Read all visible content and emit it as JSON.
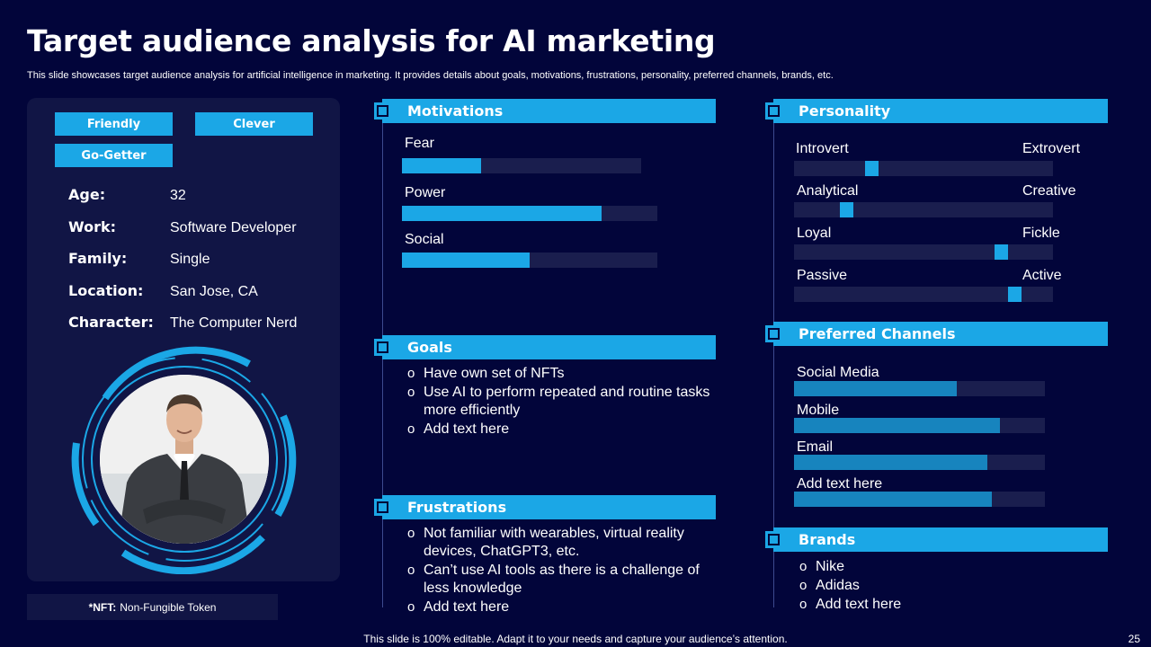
{
  "title": "Target audience analysis for AI marketing",
  "subtitle": "This slide showcases target audience analysis for artificial intelligence in marketing. It provides details about goals, motivations, frustrations, personality, preferred channels, brands, etc.",
  "persona": {
    "tags": [
      "Friendly",
      "Clever",
      "Go-Getter"
    ],
    "info": [
      {
        "label": "Age",
        "value": "32"
      },
      {
        "label": "Work",
        "value": "Software Developer"
      },
      {
        "label": "Family",
        "value": "Single"
      },
      {
        "label": "Location",
        "value": "San Jose, CA"
      },
      {
        "label": "Character",
        "value": "The Computer Nerd"
      }
    ],
    "colon": ":"
  },
  "footnote": {
    "term": "*NFT:",
    "definition": "Non-Fungible Token"
  },
  "motivations": {
    "heading": "Motivations",
    "items": [
      {
        "label": "Fear",
        "level": 0.33
      },
      {
        "label": "Power",
        "level": 0.78
      },
      {
        "label": "Social",
        "level": 0.5
      }
    ]
  },
  "goals": {
    "heading": "Goals",
    "items": [
      "Have own set of NFTs",
      "Use AI to perform repeated and routine tasks more efficiently",
      "Add text here"
    ]
  },
  "frustrations": {
    "heading": "Frustrations",
    "items": [
      "Not familiar with wearables, virtual reality devices, ChatGPT3, etc.",
      "Can’t use AI tools as there is a challenge of less knowledge",
      "Add text here"
    ]
  },
  "personality": {
    "heading": "Personality",
    "traits": [
      {
        "left": "Introvert",
        "right": "Extrovert",
        "level": 0.3
      },
      {
        "left": "Analytical",
        "right": "Creative",
        "level": 0.2
      },
      {
        "left": "Loyal",
        "right": "Fickle",
        "level": 0.8
      },
      {
        "left": "Passive",
        "right": "Active",
        "level": 0.85
      }
    ]
  },
  "channels": {
    "heading": "Preferred Channels",
    "items": [
      {
        "label": "Social Media",
        "level": 0.65
      },
      {
        "label": "Mobile",
        "level": 0.82
      },
      {
        "label": "Email",
        "level": 0.77
      },
      {
        "label": "Add text here",
        "level": 0.79
      }
    ]
  },
  "brands": {
    "heading": "Brands",
    "items": [
      "Nike",
      "Adidas",
      "Add text here"
    ]
  },
  "bottom_note": "This slide is 100% editable. Adapt it to your needs and capture your audience’s attention.",
  "page_number": "25",
  "colors": {
    "background": "#02053a",
    "card": "#111545",
    "accent": "#1ba7e6",
    "track": "#1a1e4e"
  }
}
